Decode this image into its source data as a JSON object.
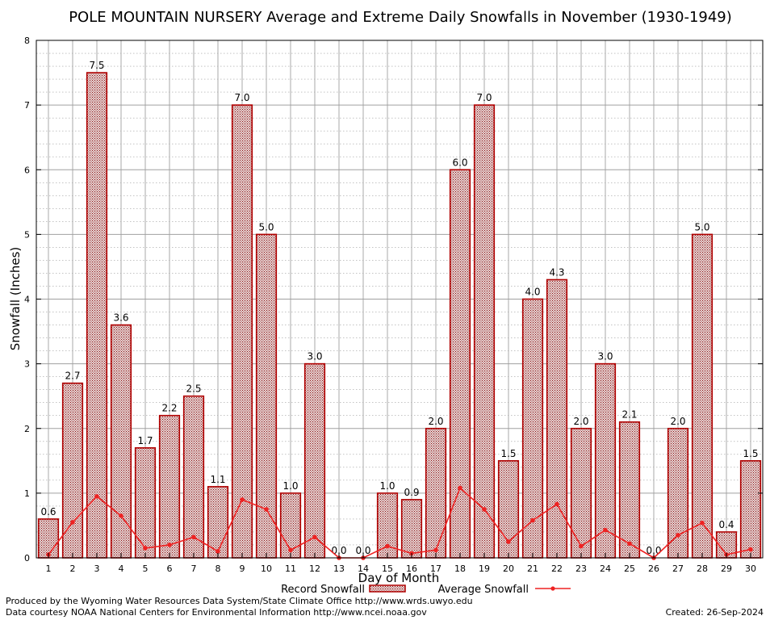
{
  "chart_data": {
    "type": "bar",
    "title": "POLE MOUNTAIN NURSERY Average and Extreme Daily Snowfalls in November (1930-1949)",
    "xlabel": "Day of Month",
    "ylabel": "Snowfall (Inches)",
    "ylim": [
      0,
      8
    ],
    "yticks": [
      0,
      1,
      2,
      3,
      4,
      5,
      6,
      7,
      8
    ],
    "grid": true,
    "categories": [
      "1",
      "2",
      "3",
      "4",
      "5",
      "6",
      "7",
      "8",
      "9",
      "10",
      "11",
      "12",
      "13",
      "14",
      "15",
      "16",
      "17",
      "18",
      "19",
      "20",
      "21",
      "22",
      "23",
      "24",
      "25",
      "26",
      "27",
      "28",
      "29",
      "30"
    ],
    "series": [
      {
        "name": "Record Snowfall",
        "kind": "bar",
        "values": [
          0.6,
          2.7,
          7.5,
          3.6,
          1.7,
          2.2,
          2.5,
          1.1,
          7.0,
          5.0,
          1.0,
          3.0,
          0.0,
          0.0,
          1.0,
          0.9,
          2.0,
          6.0,
          7.0,
          1.5,
          4.0,
          4.3,
          2.0,
          3.0,
          2.1,
          0.0,
          2.0,
          5.0,
          0.4,
          1.5
        ],
        "labels": [
          "0.6",
          "2.7",
          "7.5",
          "3.6",
          "1.7",
          "2.2",
          "2.5",
          "1.1",
          "7.0",
          "5.0",
          "1.0",
          "3.0",
          "0.0",
          "0.0",
          "1.0",
          "0.9",
          "2.0",
          "6.0",
          "7.0",
          "1.5",
          "4.0",
          "4.3",
          "2.0",
          "3.0",
          "2.1",
          "0.0",
          "2.0",
          "5.0",
          "0.4",
          "1.5"
        ]
      },
      {
        "name": "Average Snowfall",
        "kind": "line",
        "values": [
          0.05,
          0.55,
          0.95,
          0.65,
          0.15,
          0.2,
          0.32,
          0.1,
          0.9,
          0.75,
          0.12,
          0.32,
          0.0,
          0.0,
          0.18,
          0.07,
          0.12,
          1.08,
          0.75,
          0.25,
          0.58,
          0.83,
          0.18,
          0.43,
          0.22,
          0.0,
          0.35,
          0.54,
          0.05,
          0.13
        ]
      }
    ],
    "legend": {
      "placement": "bottom-center"
    },
    "colors": {
      "bar_fill": "#c8a0a0",
      "bar_edge": "#b00000",
      "line": "#ee2222",
      "grid": "#a0a0a0"
    }
  },
  "footer": {
    "produced_by": "Produced by the Wyoming Water Resources Data System/State Climate Office http://www.wrds.uwyo.edu",
    "courtesy": "Data courtesy NOAA National Centers for Environmental Information http://www.ncei.noaa.gov",
    "created": "Created:  26-Sep-2024"
  }
}
